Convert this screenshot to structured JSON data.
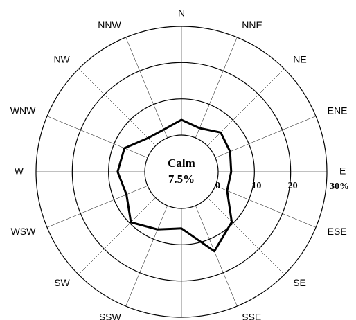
{
  "chart_data": {
    "type": "windrose",
    "categories": [
      "N",
      "NNE",
      "NE",
      "ENE",
      "E",
      "ESE",
      "SE",
      "SSE",
      "S",
      "SSW",
      "SW",
      "WSW",
      "W",
      "WNW",
      "NW",
      "NNW"
    ],
    "values": [
      4.2,
      2.9,
      5.2,
      4.4,
      3.6,
      3.5,
      9.5,
      13.6,
      5.5,
      7.1,
      9.6,
      6.3,
      7.5,
      6.9,
      3.0,
      2.5
    ],
    "color": "#000000",
    "rlim": [
      0,
      30
    ],
    "rticks": [
      0,
      10,
      20,
      {
        "value": 30,
        "label": "30%"
      }
    ],
    "calm_label": "Calm",
    "calm_value_label": "7.5%"
  }
}
